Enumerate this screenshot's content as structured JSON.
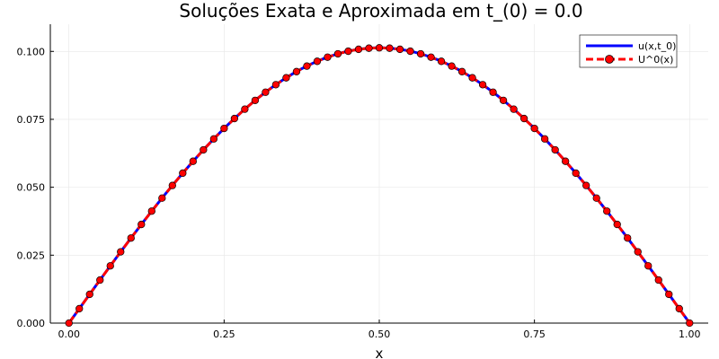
{
  "chart_data": {
    "type": "line",
    "title": "Soluções Exata e Aproximada em t_(0) = 0.0",
    "xlabel": "x",
    "ylabel": "",
    "xlim": [
      -0.03,
      1.03
    ],
    "ylim": [
      0.0,
      0.11
    ],
    "x_ticks": [
      0.0,
      0.25,
      0.5,
      0.75,
      1.0
    ],
    "x_tick_labels": [
      "0.00",
      "0.25",
      "0.50",
      "0.75",
      "1.00"
    ],
    "y_ticks": [
      0.0,
      0.025,
      0.05,
      0.075,
      0.1
    ],
    "y_tick_labels": [
      "0.000",
      "0.025",
      "0.050",
      "0.075",
      "0.100"
    ],
    "grid": true,
    "legend_position": "top-right",
    "series": [
      {
        "name": "u(x,t_0)",
        "style": "solid",
        "color": "#0000ff",
        "function": "sin(pi*x)/(pi^2)",
        "x_range": [
          0.0,
          1.0
        ]
      },
      {
        "name": "U^0(x)",
        "style": "dashed",
        "marker": "circle",
        "color": "#ff0000",
        "function": "sin(pi*x)/(pi^2)",
        "x_range": [
          0.0,
          1.0
        ],
        "points": 61
      }
    ]
  }
}
